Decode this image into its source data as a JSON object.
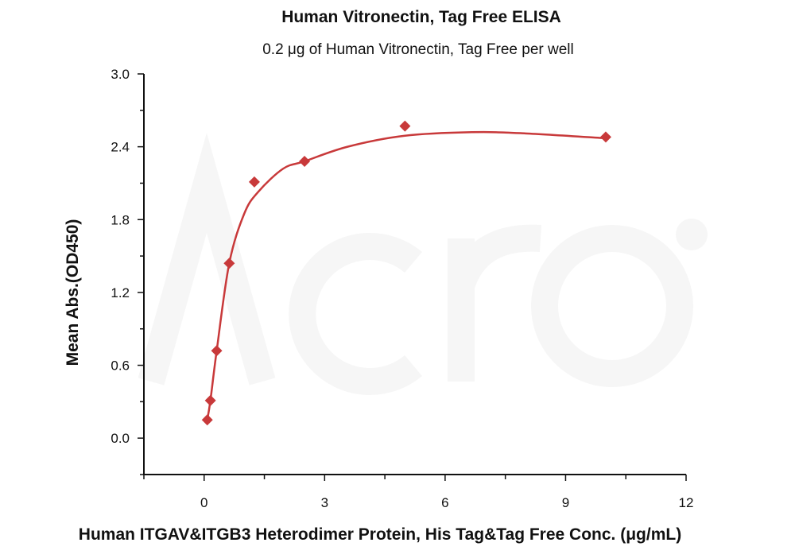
{
  "chart_data": {
    "type": "scatter",
    "title": "Human Vitronectin, Tag Free ELISA",
    "subtitle": "0.2 μg of Human Vitronectin, Tag Free per well",
    "xlabel": "Human ITGAV&ITGB3 Heterodimer Protein, His Tag&Tag Free Conc. (μg/mL)",
    "ylabel": "Mean Abs.(OD450)",
    "xlim": [
      -1.5,
      12
    ],
    "ylim": [
      -0.3,
      3.0
    ],
    "xticks": [
      0,
      3,
      6,
      9,
      12
    ],
    "xtick_labels": [
      "0",
      "3",
      "6",
      "9",
      "12"
    ],
    "yticks": [
      0.0,
      0.6,
      1.2,
      1.8,
      2.4,
      3.0
    ],
    "ytick_labels": [
      "0.0",
      "0.6",
      "1.2",
      "1.8",
      "2.4",
      "3.0"
    ],
    "grid": false,
    "watermark": "Acro BIOSYSTEMS",
    "series": [
      {
        "marker": "diamond",
        "color": "#c8393a",
        "x": [
          0.078,
          0.156,
          0.3125,
          0.625,
          1.25,
          2.5,
          5,
          10
        ],
        "y": [
          0.15,
          0.31,
          0.72,
          1.44,
          2.11,
          2.28,
          2.57,
          2.48
        ]
      }
    ],
    "fit_curve": {
      "color": "#c8393a",
      "x": [
        0.078,
        0.156,
        0.3125,
        0.625,
        1.0,
        1.35,
        1.97,
        2.5,
        3.57,
        4.98,
        6.67,
        8.0,
        10.0
      ],
      "y": [
        0.15,
        0.31,
        0.72,
        1.44,
        1.85,
        2.03,
        2.22,
        2.28,
        2.4,
        2.49,
        2.52,
        2.51,
        2.47
      ]
    }
  }
}
